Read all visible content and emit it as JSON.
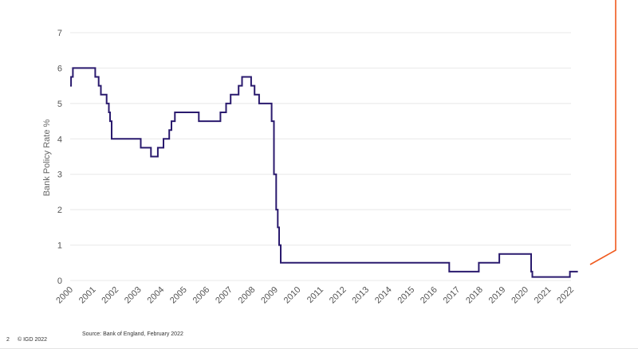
{
  "footer": {
    "page_number": "2",
    "copyright": "© IGD 2022",
    "source": "Source: Bank of England, February 2022"
  },
  "colors": {
    "line": "#2a1a6e",
    "grid": "#e8e8e8",
    "accent_orange": "#f05a1e"
  },
  "chart_data": {
    "type": "line",
    "step": true,
    "title": "",
    "xlabel": "",
    "ylabel": "Bank Policy Rate %",
    "xlim": [
      2000,
      2022.3
    ],
    "ylim": [
      0,
      7
    ],
    "grid": "horizontal",
    "x_ticks": [
      "2000",
      "2001",
      "2002",
      "2003",
      "2004",
      "2005",
      "2006",
      "2007",
      "2008",
      "2009",
      "2010",
      "2011",
      "2012",
      "2013",
      "2014",
      "2015",
      "2016",
      "2017",
      "2018",
      "2019",
      "2020",
      "2021",
      "2022"
    ],
    "y_ticks": [
      "0",
      "1",
      "2",
      "3",
      "4",
      "5",
      "6",
      "7"
    ],
    "series": [
      {
        "points": [
          [
            2000.0,
            5.5
          ],
          [
            2000.04,
            5.75
          ],
          [
            2000.12,
            6.0
          ],
          [
            2001.1,
            5.75
          ],
          [
            2001.25,
            5.5
          ],
          [
            2001.35,
            5.25
          ],
          [
            2001.6,
            5.0
          ],
          [
            2001.7,
            4.75
          ],
          [
            2001.75,
            4.5
          ],
          [
            2001.82,
            4.0
          ],
          [
            2003.1,
            3.75
          ],
          [
            2003.55,
            3.5
          ],
          [
            2003.85,
            3.75
          ],
          [
            2004.1,
            4.0
          ],
          [
            2004.35,
            4.25
          ],
          [
            2004.45,
            4.5
          ],
          [
            2004.6,
            4.75
          ],
          [
            2005.65,
            4.5
          ],
          [
            2006.6,
            4.75
          ],
          [
            2006.85,
            5.0
          ],
          [
            2007.05,
            5.25
          ],
          [
            2007.4,
            5.5
          ],
          [
            2007.55,
            5.75
          ],
          [
            2007.95,
            5.5
          ],
          [
            2008.1,
            5.25
          ],
          [
            2008.3,
            5.0
          ],
          [
            2008.85,
            4.5
          ],
          [
            2008.95,
            3.0
          ],
          [
            2009.05,
            2.0
          ],
          [
            2009.12,
            1.5
          ],
          [
            2009.18,
            1.0
          ],
          [
            2009.25,
            0.5
          ],
          [
            2016.65,
            0.25
          ],
          [
            2017.95,
            0.5
          ],
          [
            2018.85,
            0.75
          ],
          [
            2020.25,
            0.25
          ],
          [
            2020.3,
            0.1
          ],
          [
            2021.95,
            0.25
          ],
          [
            2022.3,
            0.25
          ]
        ]
      }
    ]
  }
}
